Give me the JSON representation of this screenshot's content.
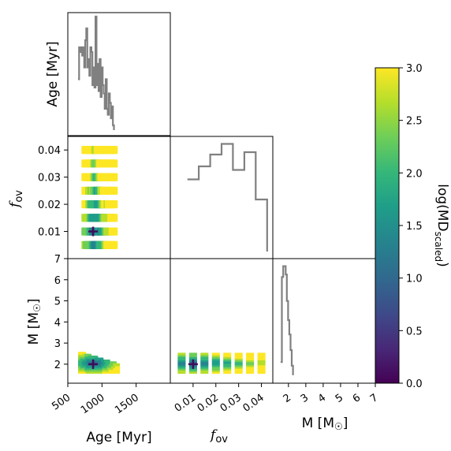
{
  "chart_data": [
    {
      "type": "line",
      "panel": "hist-age",
      "x": [
        650,
        665,
        680,
        695,
        710,
        725,
        740,
        755,
        770,
        785,
        800,
        815,
        830,
        845,
        860,
        875,
        890,
        905,
        920,
        935,
        950,
        965,
        980,
        995,
        1010,
        1025,
        1040,
        1055,
        1070,
        1085,
        1100,
        1115,
        1130,
        1145,
        1160,
        1175
      ],
      "values": [
        0.45,
        0.72,
        0.68,
        0.72,
        0.65,
        0.72,
        0.55,
        0.78,
        0.88,
        0.55,
        0.62,
        0.48,
        0.72,
        0.68,
        0.4,
        0.55,
        0.38,
        0.98,
        0.4,
        0.58,
        0.35,
        0.62,
        0.3,
        0.55,
        0.4,
        0.33,
        0.2,
        0.45,
        0.2,
        0.15,
        0.33,
        0.25,
        0.12,
        0.22,
        0.06,
        0.02
      ]
    },
    {
      "type": "line",
      "panel": "hist-fov",
      "x": [
        0.005,
        0.01,
        0.015,
        0.02,
        0.025,
        0.03,
        0.035,
        0.04
      ],
      "values": [
        0.65,
        0.76,
        0.86,
        0.95,
        0.73,
        0.88,
        0.48,
        0.04
      ]
    },
    {
      "type": "line",
      "panel": "hist-mass",
      "x": [
        1.55,
        1.62,
        1.7,
        1.77,
        1.84,
        1.91,
        1.98,
        2.05,
        2.12,
        2.19,
        2.26
      ],
      "values": [
        0.15,
        0.86,
        0.95,
        0.95,
        0.88,
        0.66,
        0.5,
        0.38,
        0.25,
        0.12,
        0.04
      ]
    },
    {
      "type": "heatmap",
      "panel": "fov-vs-age",
      "x": [
        700,
        1150
      ],
      "y": [
        0.005,
        0.01,
        0.015,
        0.02,
        0.025,
        0.03,
        0.035,
        0.04
      ],
      "best": {
        "x": 870,
        "y": 0.01
      },
      "ylabel": "f_ov"
    },
    {
      "type": "heatmap",
      "panel": "mass-vs-age",
      "x": [
        650,
        1200
      ],
      "y": [
        1.55,
        2.5
      ],
      "best": {
        "x": 870,
        "y": 2.0
      },
      "xlabel": "Age [Myr]",
      "ylabel": "M [M☉]"
    },
    {
      "type": "heatmap",
      "panel": "mass-vs-fov",
      "x": [
        0.005,
        0.01,
        0.015,
        0.02,
        0.025,
        0.03,
        0.035,
        0.04
      ],
      "y": [
        1.55,
        2.5
      ],
      "best": {
        "x": 0.01,
        "y": 2.0
      },
      "xlabel": "f_ov"
    }
  ],
  "axes": {
    "age": {
      "range": [
        500,
        2000
      ],
      "ticks": [
        "500",
        "1000",
        "1500"
      ],
      "tick_values": [
        500,
        1000,
        1500
      ]
    },
    "fov": {
      "range": [
        0,
        0.045
      ],
      "ticks": [
        "0.01",
        "0.02",
        "0.03",
        "0.04"
      ],
      "tick_values": [
        0.01,
        0.02,
        0.03,
        0.04
      ]
    },
    "fov_y_ticks": [
      "0.01",
      "0.02",
      "0.03",
      "0.04"
    ],
    "mass": {
      "range": [
        1.1,
        7
      ],
      "ticks": [
        "2",
        "3",
        "4",
        "5",
        "6",
        "7"
      ],
      "tick_values": [
        2,
        3,
        4,
        5,
        6,
        7
      ]
    },
    "mass_y_ticks": [
      "2",
      "3",
      "4",
      "5",
      "6",
      "7"
    ]
  },
  "colorbar": {
    "range": [
      0,
      3
    ],
    "ticks": [
      "0.0",
      "0.5",
      "1.0",
      "1.5",
      "2.0",
      "2.5",
      "3.0"
    ],
    "tick_values": [
      0,
      0.5,
      1,
      1.5,
      2,
      2.5,
      3
    ],
    "colormap": "viridis",
    "colors": [
      "#440154",
      "#482878",
      "#3e4a89",
      "#31688e",
      "#26828e",
      "#1f9e89",
      "#35b779",
      "#6ece58",
      "#b5de2b",
      "#fde725"
    ]
  },
  "labels": {
    "age_y": "Age [Myr]",
    "age_x": "Age [Myr]",
    "fov": "f",
    "fov_sub": "ov",
    "mass": "M [M",
    "mass_sym": "☉",
    "mass_close": "]",
    "colorbar_main": "log(MD",
    "colorbar_sub": "scaled",
    "colorbar_close": ")"
  },
  "style": {
    "hist_color": "#808080",
    "marker_color": "#3b0f59"
  }
}
